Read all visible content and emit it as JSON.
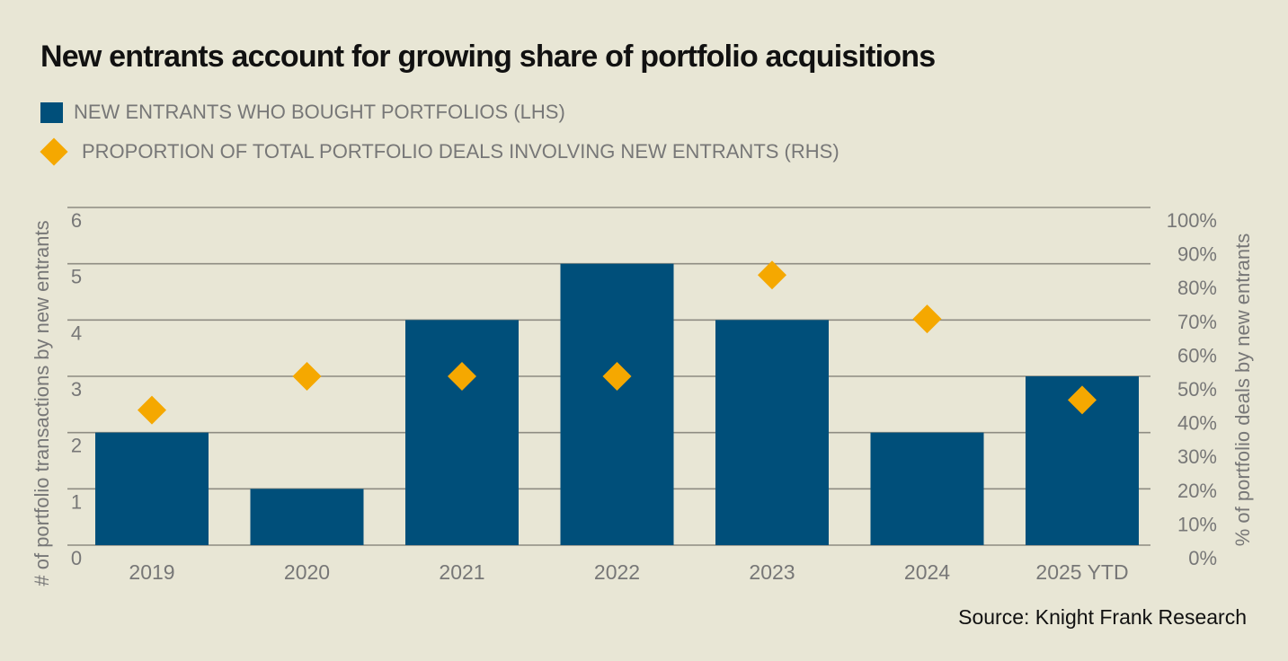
{
  "chart_data": {
    "type": "bar",
    "title": "New entrants account for growing share of portfolio acquisitions",
    "categories": [
      "2019",
      "2020",
      "2021",
      "2022",
      "2023",
      "2024",
      "2025 YTD"
    ],
    "series": [
      {
        "name": "NEW ENTRANTS WHO BOUGHT PORTFOLIOS (LHS)",
        "type": "bar",
        "axis": "left",
        "color": "#004f7a",
        "values": [
          2,
          1,
          4,
          5,
          4,
          2,
          3
        ]
      },
      {
        "name": "PROPORTION OF TOTAL PORTFOLIO DEALS INVOLVING NEW ENTRANTS (RHS)",
        "type": "scatter",
        "marker": "diamond",
        "axis": "right",
        "color": "#f5a800",
        "values": [
          40,
          50,
          50,
          50,
          80,
          67,
          43
        ]
      }
    ],
    "ylabel": "# of portfolio transactions by new entrants",
    "ylim": [
      0,
      6
    ],
    "yticks": [
      "0",
      "1",
      "2",
      "3",
      "4",
      "5",
      "6"
    ],
    "y2label": "% of portfolio deals by new entrants",
    "y2lim": [
      0,
      100
    ],
    "y2ticks": [
      "0%",
      "10%",
      "20%",
      "30%",
      "40%",
      "50%",
      "60%",
      "70%",
      "80%",
      "90%",
      "100%"
    ],
    "grid": true,
    "legend": "top-left"
  },
  "source": "Source: Knight Frank Research"
}
